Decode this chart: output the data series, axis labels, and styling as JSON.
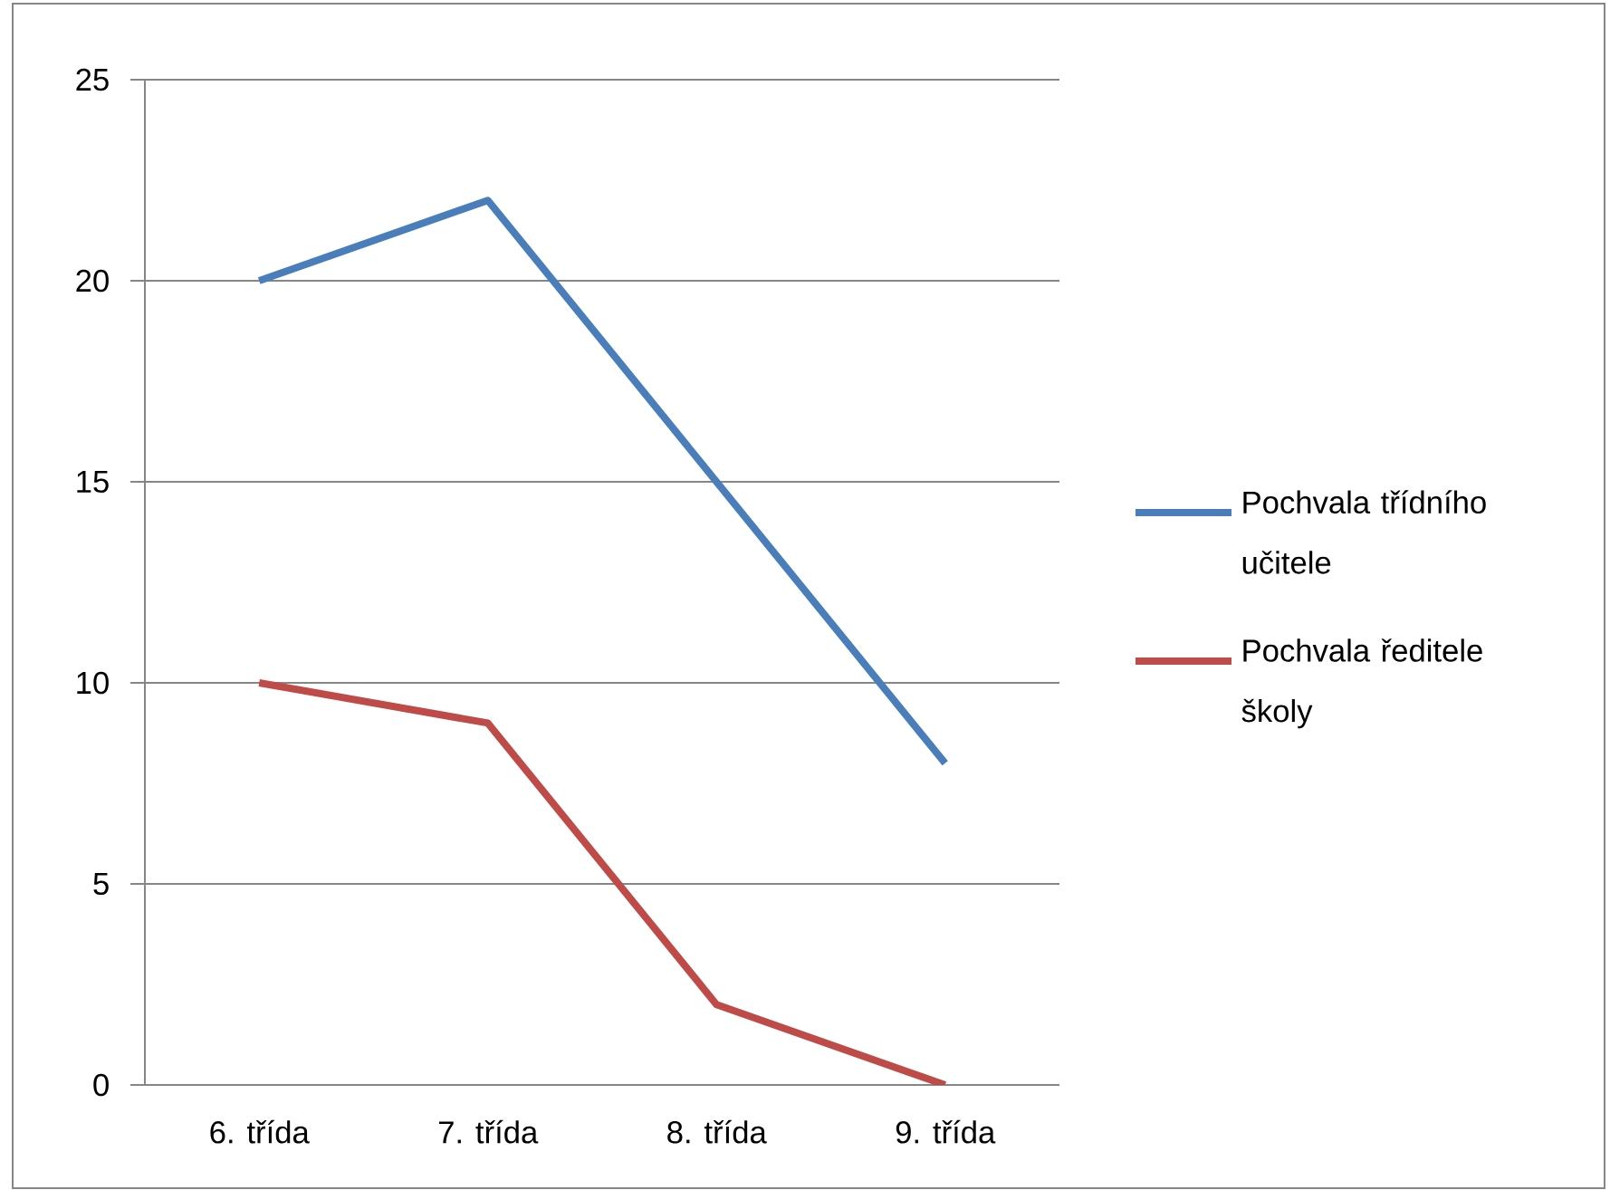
{
  "chart_data": {
    "type": "line",
    "categories": [
      "6. třída",
      "7. třída",
      "8. třída",
      "9. třída"
    ],
    "series": [
      {
        "name": "Pochvala třídního učitele",
        "color": "#4a7ebb",
        "values": [
          20,
          22,
          15,
          8
        ]
      },
      {
        "name": "Pochvala ředitele školy",
        "color": "#be4b48",
        "values": [
          10,
          9,
          2,
          0
        ]
      }
    ],
    "ylim": [
      0,
      25
    ],
    "yticks": [
      0,
      5,
      10,
      15,
      20,
      25
    ],
    "grid": "y",
    "legend": "right",
    "marker": "none",
    "line_style": "solid"
  }
}
